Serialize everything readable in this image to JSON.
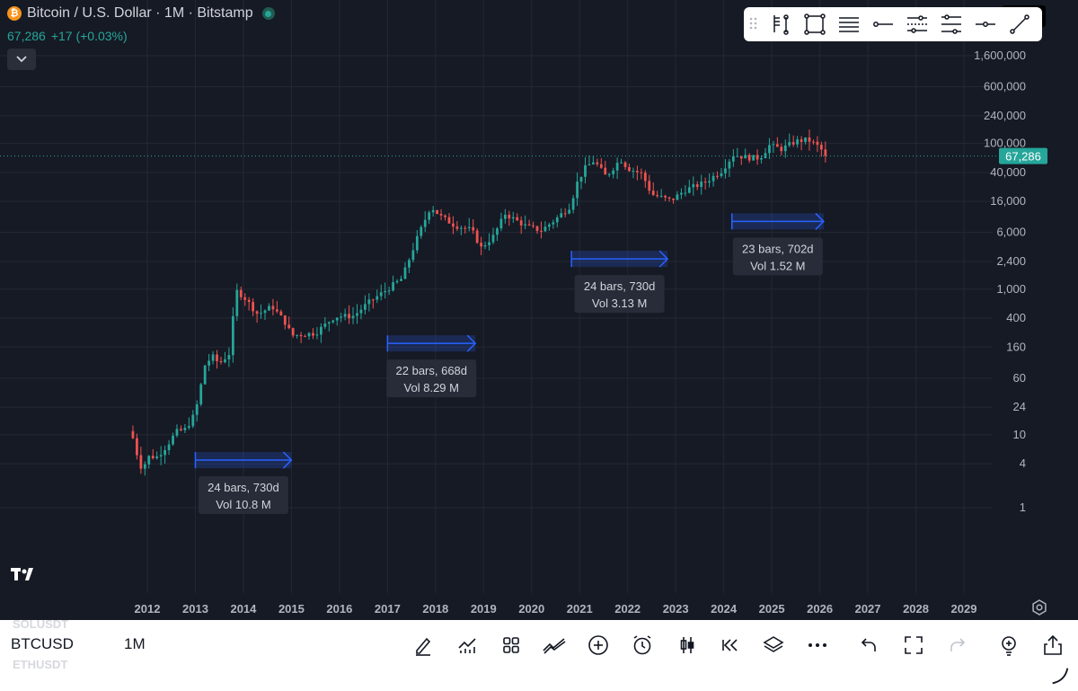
{
  "header": {
    "coin_glyph": "₿",
    "title": "Bitcoin / U.S. Dollar · 1M · Bitstamp",
    "last_price": "67,286",
    "change": "+17 (+0.03%)"
  },
  "colors": {
    "background": "#161a25",
    "up": "#26a69a",
    "down": "#ef5350",
    "measure": "#2962ff",
    "text": "#d1d4dc"
  },
  "icons": {
    "drawing_toolbar": [
      "drag-handle-icon",
      "flag-pole-icon",
      "rectangle-icon",
      "horizontal-lines-icon",
      "horizontal-ray-icon",
      "parallel-channel-icon",
      "multi-ray-icon",
      "horizontal-segment-icon",
      "trend-line-icon"
    ],
    "bottom_toolbar": [
      "pen-icon",
      "chart-icon",
      "grid-icon",
      "trend-icon",
      "plus-circle-icon",
      "alarm-icon",
      "candles-icon",
      "rewind-icon",
      "layers-icon",
      "more-icon",
      "undo-icon",
      "fullscreen-icon",
      "redo-icon",
      "idea-icon",
      "share-icon"
    ]
  },
  "chart_data": {
    "type": "candlestick",
    "scale": "log",
    "ylim": [
      0.9,
      3200000
    ],
    "y_ticks": [
      "1,600,000",
      "600,000",
      "240,000",
      "100,000",
      "40,000",
      "16,000",
      "6,000",
      "2,400",
      "1,000",
      "400",
      "160",
      "60",
      "24",
      "10",
      "4",
      "1"
    ],
    "y_tick_values": [
      1600000,
      600000,
      240000,
      100000,
      40000,
      16000,
      6000,
      2400,
      1000,
      400,
      160,
      60,
      24,
      10,
      4,
      1
    ],
    "x_ticks": [
      "2012",
      "2013",
      "2014",
      "2015",
      "2016",
      "2017",
      "2018",
      "2019",
      "2020",
      "2021",
      "2022",
      "2023",
      "2024",
      "2025",
      "2026",
      "2027",
      "2028",
      "2029"
    ],
    "x_range": [
      2011.55,
      2029.55
    ],
    "price_label": "67,286",
    "last_price_value": 67286,
    "grid": true,
    "measurements": [
      {
        "start": 2013.0,
        "end": 2015.0,
        "level": 4.5,
        "text1": "24 bars, 730d",
        "text2": "Vol 10.8 M"
      },
      {
        "start": 2017.0,
        "end": 2018.83,
        "level": 180,
        "text1": "22 bars, 668d",
        "text2": "Vol 8.29 M"
      },
      {
        "start": 2020.83,
        "end": 2022.83,
        "level": 2600,
        "text1": "24 bars, 730d",
        "text2": "Vol 3.13 M"
      },
      {
        "start": 2024.17,
        "end": 2026.08,
        "level": 8500,
        "text1": "23 bars, 702d",
        "text2": "Vol 1.52 M"
      }
    ],
    "close_anchors": [
      [
        2011.7,
        9
      ],
      [
        2011.8,
        5
      ],
      [
        2011.9,
        3.2
      ],
      [
        2012.0,
        5
      ],
      [
        2012.2,
        5
      ],
      [
        2012.4,
        7
      ],
      [
        2012.6,
        11
      ],
      [
        2012.8,
        12
      ],
      [
        2013.0,
        20
      ],
      [
        2013.2,
        90
      ],
      [
        2013.35,
        120
      ],
      [
        2013.5,
        95
      ],
      [
        2013.7,
        130
      ],
      [
        2013.85,
        950
      ],
      [
        2014.0,
        800
      ],
      [
        2014.3,
        450
      ],
      [
        2014.6,
        580
      ],
      [
        2014.9,
        330
      ],
      [
        2015.0,
        230
      ],
      [
        2015.5,
        250
      ],
      [
        2015.9,
        420
      ],
      [
        2016.3,
        430
      ],
      [
        2016.6,
        650
      ],
      [
        2016.95,
        950
      ],
      [
        2017.3,
        1400
      ],
      [
        2017.6,
        4700
      ],
      [
        2017.9,
        13800
      ],
      [
        2018.1,
        10000
      ],
      [
        2018.4,
        7500
      ],
      [
        2018.75,
        6500
      ],
      [
        2018.95,
        3700
      ],
      [
        2019.2,
        5300
      ],
      [
        2019.45,
        10800
      ],
      [
        2019.9,
        7200
      ],
      [
        2020.2,
        6400
      ],
      [
        2020.5,
        9100
      ],
      [
        2020.8,
        13800
      ],
      [
        2020.95,
        29000
      ],
      [
        2021.1,
        45000
      ],
      [
        2021.3,
        58000
      ],
      [
        2021.55,
        35000
      ],
      [
        2021.85,
        61000
      ],
      [
        2022.0,
        46000
      ],
      [
        2022.3,
        38000
      ],
      [
        2022.5,
        20000
      ],
      [
        2022.9,
        16500
      ],
      [
        2023.2,
        23000
      ],
      [
        2023.6,
        29000
      ],
      [
        2023.95,
        42000
      ],
      [
        2024.2,
        70000
      ],
      [
        2024.5,
        64000
      ],
      [
        2024.75,
        63000
      ],
      [
        2024.95,
        94000
      ],
      [
        2025.2,
        84000
      ],
      [
        2025.5,
        107000
      ],
      [
        2025.75,
        113000
      ],
      [
        2026.0,
        88000
      ],
      [
        2026.12,
        67286
      ]
    ]
  },
  "bottom": {
    "ghost_top": "SOLUSDT",
    "symbol": "BTCUSD",
    "timeframe": "1M",
    "ghost_bottom": "ETHUSDT"
  }
}
